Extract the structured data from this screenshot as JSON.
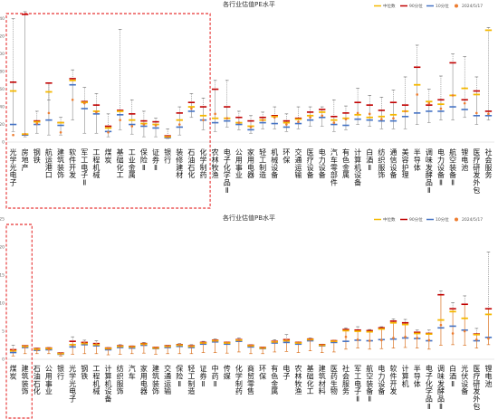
{
  "colors": {
    "median": "#f5b800",
    "p90": "#c00000",
    "p10": "#4472c4",
    "current": "#ed7d31",
    "range_pe": "#8c8c8c",
    "range_pb": "#d55e00",
    "highlight": "#e00000",
    "guide": "#666666"
  },
  "chart_data": [
    {
      "type": "box",
      "title": "各行业估值PE水平",
      "legend": [
        "中位数",
        "90分位",
        "10分位",
        "2024/5/17"
      ],
      "ylim": [
        0,
        150
      ],
      "yticks": [
        0,
        20,
        40,
        60,
        80,
        100,
        120,
        140
      ],
      "grid": false,
      "highlight_note": "red dashed box around the first 17 categories",
      "categories": [
        "光学光电子",
        "房地产",
        "钢铁",
        "航运港口",
        "建筑装饰",
        "软件开发",
        "军工电子Ⅱ",
        "工程机械",
        "煤炭",
        "基础化工",
        "工业金属",
        "保险Ⅱ",
        "证券Ⅱ",
        "银行",
        "装修建材",
        "石油石化",
        "化学制药",
        "农林牧渔",
        "电子化学品Ⅱ",
        "公用事业",
        "家用电器",
        "轻工制造",
        "机械设备",
        "环保",
        "交通运输",
        "医疗设备",
        "电力设备",
        "汽车零部件",
        "有色金属",
        "计算机设备",
        "白酒Ⅱ",
        "纺织服饰",
        "通信设备",
        "美容护理",
        "半导体",
        "调味发酵品Ⅱ",
        "电力设备Ⅱ",
        "航空装备Ⅱ",
        "锂电池",
        "医疗研发外包",
        "社会服务"
      ],
      "series": [
        {
          "name": "max",
          "values": [
            140,
            148,
            35,
            48,
            28,
            82,
            62,
            55,
            32,
            128,
            48,
            35,
            27,
            15,
            40,
            55,
            50,
            70,
            70,
            35,
            30,
            34,
            40,
            32,
            40,
            40,
            40,
            48,
            41,
            61,
            53,
            51,
            59,
            74,
            110,
            60,
            75,
            100,
            97,
            74,
            130
          ]
        },
        {
          "name": "90分位",
          "values": [
            68,
            145,
            24,
            67,
            22,
            72,
            46,
            42,
            18,
            36,
            32,
            24,
            23,
            7,
            33,
            45,
            40,
            60,
            40,
            28,
            24,
            28,
            30,
            24,
            27,
            34,
            37,
            29,
            33,
            45,
            42,
            36,
            45,
            42,
            85,
            42,
            48,
            90,
            48,
            58,
            35
          ]
        },
        {
          "name": "中位数",
          "values": [
            58,
            9,
            23,
            57,
            22,
            70,
            45,
            35,
            16,
            35,
            25,
            21,
            20,
            6,
            25,
            40,
            30,
            27,
            27,
            22,
            18,
            25,
            29,
            22,
            26,
            30,
            34,
            25,
            27,
            31,
            28,
            29,
            31,
            35,
            65,
            46,
            43,
            53,
            61,
            54,
            127
          ]
        },
        {
          "name": "10分位",
          "values": [
            20,
            8,
            20,
            25,
            19,
            65,
            38,
            32,
            12,
            31,
            20,
            18,
            16,
            5,
            17,
            35,
            25,
            22,
            24,
            20,
            14,
            22,
            21,
            17,
            21,
            25,
            28,
            20,
            19,
            26,
            25,
            24,
            24,
            29,
            33,
            35,
            35,
            40,
            37,
            30,
            30
          ]
        },
        {
          "name": "min",
          "values": [
            12,
            6,
            10,
            8,
            8,
            25,
            10,
            10,
            6,
            14,
            9,
            6,
            6,
            4,
            8,
            28,
            14,
            12,
            17,
            14,
            10,
            15,
            15,
            12,
            15,
            18,
            18,
            12,
            14,
            20,
            18,
            15,
            15,
            15,
            20,
            22,
            25,
            25,
            28,
            20,
            25
          ]
        },
        {
          "name": "2024/5/17",
          "values": [
            8,
            9,
            21,
            33,
            11,
            48,
            44,
            34,
            11,
            25,
            18,
            20,
            19,
            6,
            20,
            38,
            25,
            32,
            27,
            22,
            17,
            25,
            28,
            20,
            23,
            28,
            30,
            22,
            26,
            33,
            32,
            26,
            27,
            35,
            54,
            44,
            38,
            53,
            44,
            33,
            32
          ]
        }
      ]
    },
    {
      "type": "box",
      "title": "各行业估值PB水平",
      "legend": [
        "中位数",
        "90分位",
        "10分位",
        "2024/5/17"
      ],
      "ylim": [
        0,
        25
      ],
      "yticks": [
        0,
        5,
        10,
        15,
        20,
        25
      ],
      "grid": false,
      "highlight_note": "red dashed box around the first 2 categories",
      "categories": [
        "煤炭",
        "建筑装饰",
        "石油石化",
        "公用事业",
        "银行",
        "光学光电子",
        "钢铁",
        "工程机械",
        "计算机设备",
        "纺织服饰",
        "汽车",
        "家用电器",
        "建筑装饰",
        "交通运输",
        "保险Ⅱ",
        "轻工制造",
        "证券Ⅱ",
        "中药Ⅱ",
        "传媒",
        "化学制药",
        "商贸零售",
        "环保",
        "有色金属",
        "电子",
        "农林牧渔",
        "基础化工",
        "建筑材料",
        "医药生物",
        "社会服务",
        "军工电子Ⅱ",
        "航空装备Ⅱ",
        "电力设备",
        "软件开发",
        "计算机",
        "半导体",
        "电子化学品Ⅱ",
        "调味发酵品Ⅱ",
        "白酒Ⅱ",
        "光伏设备",
        "医疗研发外包",
        "锂电池"
      ],
      "series": [
        {
          "name": "max",
          "values": [
            2.5,
            2.4,
            2.0,
            2.1,
            1.2,
            4.0,
            3.4,
            3.3,
            2.1,
            2.6,
            2.4,
            3.0,
            2.2,
            2.5,
            2.8,
            2.6,
            3.2,
            3.6,
            3.1,
            3.8,
            2.6,
            2.2,
            3.5,
            4.4,
            3.1,
            3.8,
            2.7,
            3.4,
            5.6,
            5.8,
            5.3,
            5.8,
            7.2,
            7.1,
            5.2,
            5.2,
            12.2,
            10.1,
            11.3,
            5.5,
            19.1
          ]
        },
        {
          "name": "90分位",
          "values": [
            1.7,
            2.4,
            1.9,
            2.0,
            1.1,
            3.2,
            3.0,
            2.8,
            2.0,
            2.4,
            2.3,
            2.8,
            2.1,
            2.4,
            2.6,
            2.4,
            3.0,
            3.4,
            3.0,
            3.5,
            2.5,
            2.1,
            3.2,
            3.5,
            3.0,
            3.6,
            2.6,
            3.3,
            5.3,
            5.2,
            5.1,
            5.6,
            6.8,
            6.5,
            4.8,
            4.6,
            11.5,
            9.0,
            9.8,
            4.5,
            9.0
          ]
        },
        {
          "name": "中位数",
          "values": [
            1.5,
            2.3,
            1.8,
            1.9,
            1.0,
            2.6,
            2.8,
            2.6,
            1.9,
            2.3,
            2.2,
            2.7,
            2.0,
            2.3,
            2.5,
            2.3,
            2.9,
            3.3,
            2.9,
            3.4,
            2.4,
            2.0,
            3.1,
            3.3,
            2.9,
            3.5,
            2.5,
            3.2,
            5.1,
            5.0,
            4.9,
            5.4,
            6.5,
            6.2,
            4.6,
            4.5,
            7.0,
            8.5,
            7.3,
            4.4,
            8.0
          ]
        },
        {
          "name": "10分位",
          "values": [
            1.2,
            2.1,
            1.6,
            1.7,
            0.9,
            2.2,
            2.6,
            2.4,
            1.7,
            2.1,
            2.0,
            2.5,
            1.9,
            2.1,
            2.3,
            2.1,
            2.7,
            3.1,
            2.7,
            3.2,
            2.2,
            1.9,
            2.9,
            3.0,
            2.7,
            3.3,
            2.4,
            3.0,
            3.2,
            3.4,
            3.3,
            3.5,
            3.6,
            3.8,
            3.7,
            3.3,
            5.6,
            5.9,
            5.2,
            3.3,
            3.9
          ]
        },
        {
          "name": "min",
          "values": [
            0.6,
            1.0,
            1.0,
            1.0,
            0.6,
            0.9,
            1.0,
            1.0,
            0.8,
            0.9,
            1.0,
            1.1,
            0.9,
            1.0,
            1.0,
            1.0,
            1.2,
            1.2,
            1.1,
            1.3,
            1.0,
            1.0,
            1.3,
            1.4,
            1.2,
            1.5,
            1.2,
            1.3,
            1.8,
            2.0,
            1.8,
            1.9,
            2.0,
            2.1,
            2.0,
            1.8,
            2.5,
            2.6,
            2.5,
            2.0,
            2.6
          ]
        },
        {
          "name": "2024/5/17",
          "values": [
            1.6,
            2.2,
            1.7,
            1.8,
            1.0,
            2.5,
            2.9,
            2.7,
            1.9,
            2.3,
            2.2,
            2.6,
            2.0,
            2.3,
            2.6,
            2.3,
            2.9,
            3.3,
            3.0,
            3.4,
            2.4,
            2.0,
            3.1,
            3.4,
            3.0,
            3.5,
            2.5,
            3.3,
            4.0,
            3.5,
            3.3,
            3.4,
            3.8,
            4.0,
            3.8,
            3.4,
            6.1,
            4.6,
            5.0,
            3.5,
            3.7
          ]
        }
      ]
    }
  ]
}
